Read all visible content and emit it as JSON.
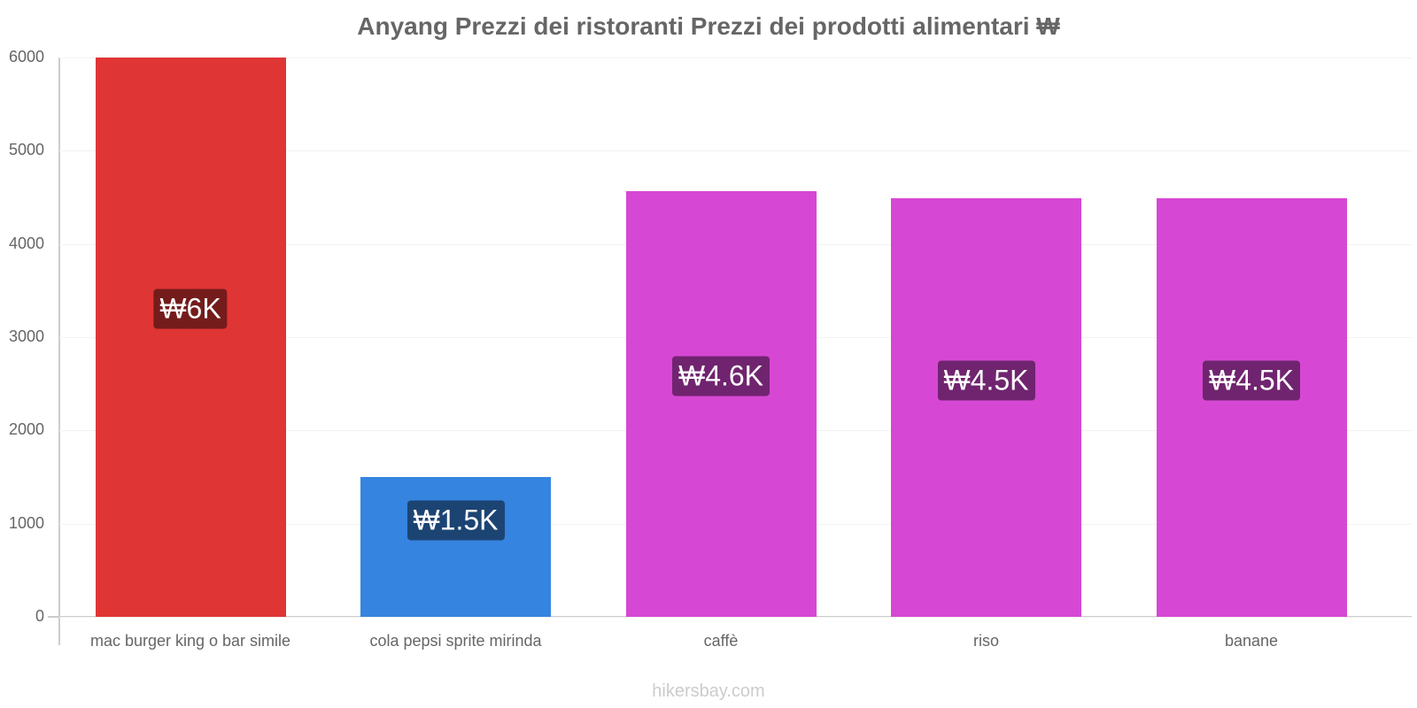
{
  "title": "Anyang Prezzi dei ristoranti Prezzi dei prodotti alimentari ₩",
  "watermark": "hikersbay.com",
  "yticks": [
    "0",
    "1000",
    "2000",
    "3000",
    "4000",
    "5000",
    "6000"
  ],
  "bars": [
    {
      "category": "mac burger king o bar simile",
      "label": "₩6K",
      "value": 6000,
      "color": "#e03535",
      "label_bg": "#741c1c"
    },
    {
      "category": "cola pepsi sprite mirinda",
      "label": "₩1.5K",
      "value": 1500,
      "color": "#3584e0",
      "label_bg": "#1c4473"
    },
    {
      "category": "caffè",
      "label": "₩4.6K",
      "value": 4570,
      "color": "#d648d4",
      "label_bg": "#70246f"
    },
    {
      "category": "riso",
      "label": "₩4.5K",
      "value": 4490,
      "color": "#d648d4",
      "label_bg": "#70246f"
    },
    {
      "category": "banane",
      "label": "₩4.5K",
      "value": 4490,
      "color": "#d648d4",
      "label_bg": "#70246f"
    }
  ],
  "chart_data": {
    "type": "bar",
    "title": "Anyang Prezzi dei ristoranti Prezzi dei prodotti alimentari ₩",
    "categories": [
      "mac burger king o bar simile",
      "cola pepsi sprite mirinda",
      "caffè",
      "riso",
      "banane"
    ],
    "values": [
      6000,
      1500,
      4570,
      4490,
      4490
    ],
    "data_labels": [
      "₩6K",
      "₩1.5K",
      "₩4.6K",
      "₩4.5K",
      "₩4.5K"
    ],
    "xlabel": "",
    "ylabel": "",
    "ylim": [
      0,
      6000
    ],
    "yticks": [
      0,
      1000,
      2000,
      3000,
      4000,
      5000,
      6000
    ],
    "grid": true,
    "legend": null
  }
}
